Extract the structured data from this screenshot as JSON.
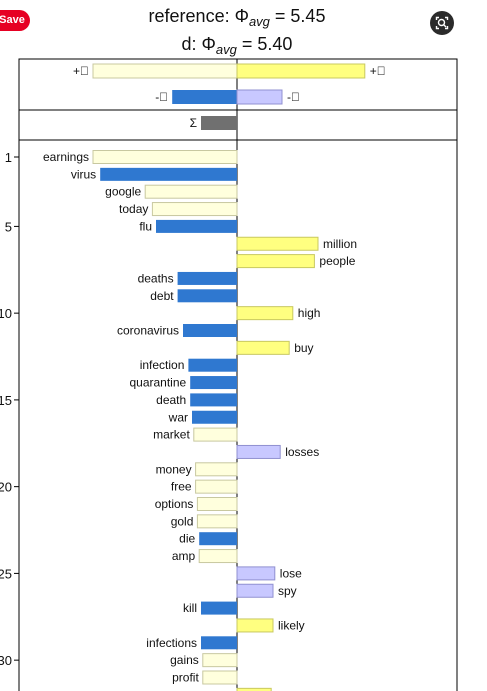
{
  "header": {
    "title_ref_prefix": "reference: Φ",
    "title_ref_sub": "avg",
    "title_ref_suffix": " = 5.45",
    "title_d_prefix": "d: Φ",
    "title_d_sub": "avg",
    "title_d_suffix": " = 5.40"
  },
  "overlay": {
    "save_label": "Save",
    "lens_icon": "lens-icon"
  },
  "colors": {
    "pos_ref": "#ffffdd",
    "pos_d": "#ffff80",
    "neg_ref": "#2f78d0",
    "neg_d": "#c8c8ff",
    "sum": "#707070",
    "pos_ref_stroke": "#c8c8a0",
    "pos_d_stroke": "#c8c860",
    "neg_d_stroke": "#9090d0"
  },
  "chart_data": {
    "type": "bar",
    "summary": [
      {
        "label": "+⃞",
        "side": "left",
        "value": 4.0,
        "kind": "pos_ref"
      },
      {
        "label": "+⃞",
        "side": "right",
        "value": 3.55,
        "kind": "pos_d"
      },
      {
        "label": "-⃞",
        "side": "left",
        "value": 1.8,
        "kind": "neg_ref"
      },
      {
        "label": "-⃞",
        "side": "right",
        "value": 1.25,
        "kind": "neg_d"
      },
      {
        "label": "Σ",
        "side": "left",
        "value": 1.0,
        "kind": "sum"
      }
    ],
    "yticks": [
      1,
      5,
      10,
      15,
      20,
      25,
      30
    ],
    "ylim": [
      0.5,
      32.3
    ],
    "words": [
      {
        "rank": 1,
        "word": "earnings",
        "side": "left",
        "value": 4.0,
        "kind": "pos_ref"
      },
      {
        "rank": 2,
        "word": "virus",
        "side": "left",
        "value": 3.8,
        "kind": "neg_ref"
      },
      {
        "rank": 3,
        "word": "google",
        "side": "left",
        "value": 2.55,
        "kind": "pos_ref"
      },
      {
        "rank": 4,
        "word": "today",
        "side": "left",
        "value": 2.35,
        "kind": "pos_ref"
      },
      {
        "rank": 5,
        "word": "flu",
        "side": "left",
        "value": 2.25,
        "kind": "neg_ref"
      },
      {
        "rank": 6,
        "word": "million",
        "side": "right",
        "value": 2.25,
        "kind": "pos_d"
      },
      {
        "rank": 7,
        "word": "people",
        "side": "right",
        "value": 2.15,
        "kind": "pos_d"
      },
      {
        "rank": 8,
        "word": "deaths",
        "side": "left",
        "value": 1.65,
        "kind": "neg_ref"
      },
      {
        "rank": 9,
        "word": "debt",
        "side": "left",
        "value": 1.65,
        "kind": "neg_ref"
      },
      {
        "rank": 10,
        "word": "high",
        "side": "right",
        "value": 1.55,
        "kind": "pos_d"
      },
      {
        "rank": 11,
        "word": "coronavirus",
        "side": "left",
        "value": 1.5,
        "kind": "neg_ref"
      },
      {
        "rank": 12,
        "word": "buy",
        "side": "right",
        "value": 1.45,
        "kind": "pos_d"
      },
      {
        "rank": 13,
        "word": "infection",
        "side": "left",
        "value": 1.35,
        "kind": "neg_ref"
      },
      {
        "rank": 14,
        "word": "quarantine",
        "side": "left",
        "value": 1.3,
        "kind": "neg_ref"
      },
      {
        "rank": 15,
        "word": "death",
        "side": "left",
        "value": 1.3,
        "kind": "neg_ref"
      },
      {
        "rank": 16,
        "word": "war",
        "side": "left",
        "value": 1.25,
        "kind": "neg_ref"
      },
      {
        "rank": 17,
        "word": "market",
        "side": "left",
        "value": 1.2,
        "kind": "pos_ref"
      },
      {
        "rank": 18,
        "word": "losses",
        "side": "right",
        "value": 1.2,
        "kind": "neg_d"
      },
      {
        "rank": 19,
        "word": "money",
        "side": "left",
        "value": 1.15,
        "kind": "pos_ref"
      },
      {
        "rank": 20,
        "word": "free",
        "side": "left",
        "value": 1.15,
        "kind": "pos_ref"
      },
      {
        "rank": 21,
        "word": "options",
        "side": "left",
        "value": 1.1,
        "kind": "pos_ref"
      },
      {
        "rank": 22,
        "word": "gold",
        "side": "left",
        "value": 1.1,
        "kind": "pos_ref"
      },
      {
        "rank": 23,
        "word": "die",
        "side": "left",
        "value": 1.05,
        "kind": "neg_ref"
      },
      {
        "rank": 24,
        "word": "amp",
        "side": "left",
        "value": 1.05,
        "kind": "pos_ref"
      },
      {
        "rank": 25,
        "word": "lose",
        "side": "right",
        "value": 1.05,
        "kind": "neg_d"
      },
      {
        "rank": 26,
        "word": "spy",
        "side": "right",
        "value": 1.0,
        "kind": "neg_d"
      },
      {
        "rank": 27,
        "word": "kill",
        "side": "left",
        "value": 1.0,
        "kind": "neg_ref"
      },
      {
        "rank": 28,
        "word": "likely",
        "side": "right",
        "value": 1.0,
        "kind": "pos_d"
      },
      {
        "rank": 29,
        "word": "infections",
        "side": "left",
        "value": 1.0,
        "kind": "neg_ref"
      },
      {
        "rank": 30,
        "word": "gains",
        "side": "left",
        "value": 0.95,
        "kind": "pos_ref"
      },
      {
        "rank": 31,
        "word": "profit",
        "side": "left",
        "value": 0.95,
        "kind": "pos_ref"
      },
      {
        "rank": 32,
        "word": "",
        "side": "right",
        "value": 0.95,
        "kind": "pos_d"
      }
    ]
  }
}
